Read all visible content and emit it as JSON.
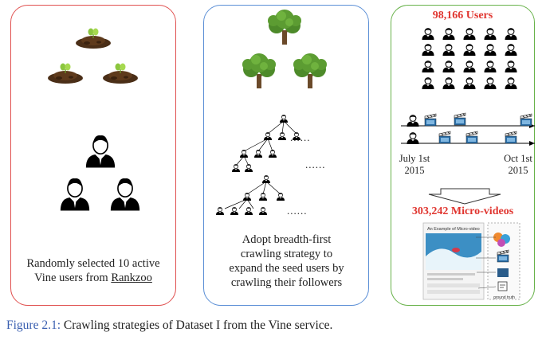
{
  "panel1": {
    "caption_line1": "Randomly selected 10 active",
    "caption_line2_prefix": "Vine users from ",
    "caption_link": "Rankzoo"
  },
  "panel2": {
    "caption_lines": [
      "Adopt breadth-first",
      "crawling strategy to",
      "expand the seed users by",
      "crawling their followers"
    ]
  },
  "panel3": {
    "users_title": "98,166 Users",
    "date_start_line1": "July 1st",
    "date_start_line2": "2015",
    "date_end_line1": "Oct 1st",
    "date_end_line2": "2015",
    "videos_title": "303,242 Micro-videos",
    "example_title": "An Example of Micro-video",
    "ground_truth": "ground truth"
  },
  "figure_caption": {
    "label": "Figure 2.1:",
    "text": " Crawling strategies of Dataset I from the Vine service."
  },
  "tree_ellipsis": "......",
  "colors": {
    "panel1_border": "#e0504f",
    "panel2_border": "#5b8fd6",
    "panel3_border": "#68b24a",
    "highlight_red": "#e0352f",
    "caption_blue": "#3a5fb0"
  }
}
